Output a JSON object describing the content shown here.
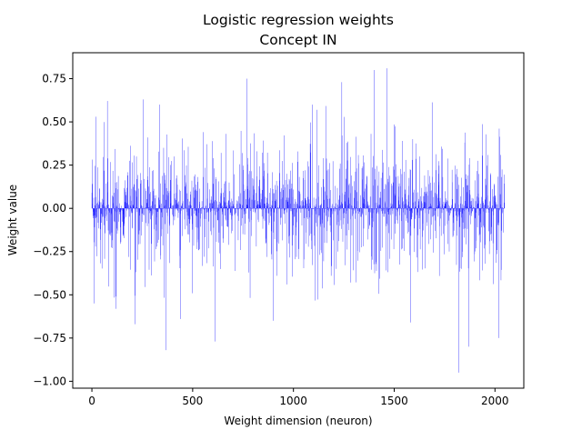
{
  "chart_data": {
    "type": "bar",
    "title": "Logistic regression weights",
    "subtitle": "Concept IN",
    "xlabel": "Weight dimension (neuron)",
    "ylabel": "Weight value",
    "xlim": [
      -95,
      2143
    ],
    "ylim": [
      -1.04,
      0.9
    ],
    "xticks": [
      0,
      500,
      1000,
      1500,
      2000
    ],
    "yticks": [
      -1.0,
      -0.75,
      -0.5,
      -0.25,
      0.0,
      0.25,
      0.5,
      0.75
    ],
    "xtick_labels": [
      "0",
      "500",
      "1000",
      "1500",
      "2000"
    ],
    "ytick_labels": [
      "−1.00",
      "−0.75",
      "−0.50",
      "−0.25",
      "0.00",
      "0.25",
      "0.50",
      "0.75"
    ],
    "n_points": 2048,
    "color": "#0000ff",
    "grid": false,
    "legend": false,
    "notable_values": [
      {
        "x": 10,
        "y": -0.55
      },
      {
        "x": 20,
        "y": 0.53
      },
      {
        "x": 118,
        "y": -0.51
      },
      {
        "x": 215,
        "y": -0.67
      },
      {
        "x": 255,
        "y": 0.63
      },
      {
        "x": 335,
        "y": 0.6
      },
      {
        "x": 368,
        "y": -0.82
      },
      {
        "x": 440,
        "y": -0.64
      },
      {
        "x": 610,
        "y": -0.77
      },
      {
        "x": 770,
        "y": 0.75
      },
      {
        "x": 900,
        "y": -0.65
      },
      {
        "x": 1095,
        "y": 0.6
      },
      {
        "x": 1240,
        "y": 0.73
      },
      {
        "x": 1400,
        "y": 0.8
      },
      {
        "x": 1465,
        "y": 0.81
      },
      {
        "x": 1580,
        "y": -0.66
      },
      {
        "x": 1820,
        "y": -0.95
      },
      {
        "x": 1870,
        "y": -0.8
      },
      {
        "x": 2020,
        "y": -0.75
      }
    ],
    "values": []
  }
}
